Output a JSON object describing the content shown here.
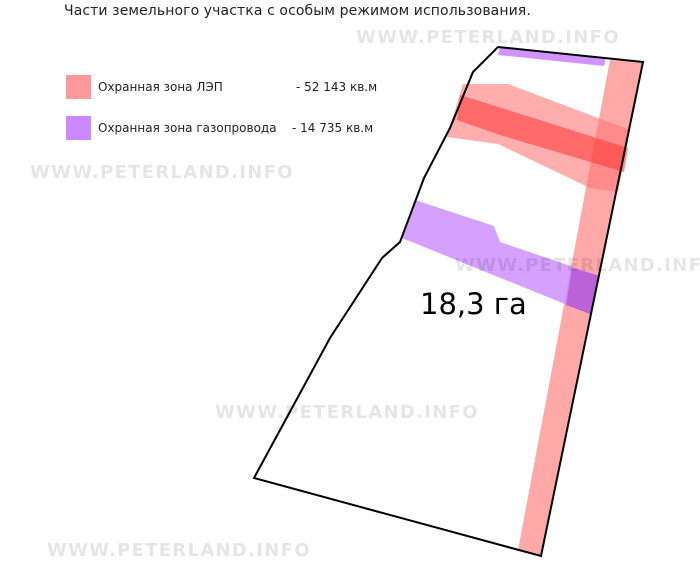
{
  "title": "Части земельного участка с особым режимом использования.",
  "legend": [
    {
      "label": "Охранная зона ЛЭП",
      "value": "- 52 143 кв.м",
      "color": "#ff9999"
    },
    {
      "label": "Охранная зона газопровода",
      "value": "- 14 735 кв.м",
      "color": "#cc88ff"
    }
  ],
  "watermark": "WWW.PETERLAND.INFO",
  "area_label": "18,3 га"
}
